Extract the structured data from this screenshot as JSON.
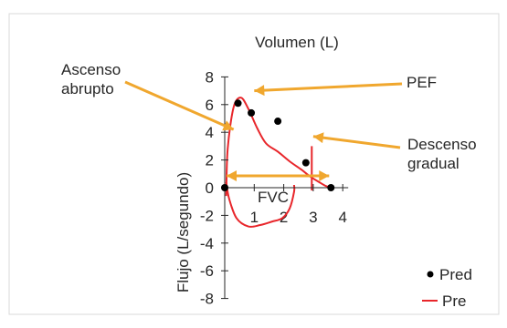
{
  "chart_data": {
    "type": "scatter",
    "title": "Volumen (L)",
    "xlabel": "Volumen (L)",
    "ylabel": "Flujo (L/segundo)",
    "xlim": [
      0,
      4
    ],
    "ylim": [
      -8,
      8
    ],
    "x_ticks": [
      1,
      2,
      3,
      4
    ],
    "y_ticks": [
      8,
      6,
      4,
      2,
      0,
      -2,
      -4,
      -6,
      -8
    ],
    "grid": false,
    "legend": "bottom-right",
    "series": [
      {
        "name": "Pred",
        "kind": "points",
        "color": "#000000",
        "x": [
          0,
          0.45,
          0.9,
          1.8,
          2.75,
          3.6
        ],
        "y": [
          0,
          6.1,
          5.4,
          4.8,
          1.8,
          0
        ]
      },
      {
        "name": "Pre",
        "kind": "line",
        "color": "#e8262b",
        "x": [
          0.05,
          0.1,
          0.3,
          0.55,
          0.8,
          1.1,
          1.4,
          1.8,
          2.2,
          2.6,
          2.9,
          3.2,
          3.45,
          3.65
        ],
        "y": [
          -0.6,
          2.8,
          5.8,
          6.5,
          5.7,
          4.3,
          3.2,
          2.6,
          1.9,
          1.3,
          0.8,
          0.4,
          0.1,
          0.0
        ],
        "return_x": [
          0.05,
          0.15,
          0.4,
          0.8,
          1.2,
          1.6,
          1.95,
          2.2,
          2.35,
          2.35
        ],
        "return_y": [
          0.4,
          -0.8,
          -2.2,
          -2.8,
          -2.7,
          -2.45,
          -2.2,
          -1.5,
          -0.3,
          0.2
        ],
        "vertical_mark": {
          "x": 2.95,
          "y1": -0.2,
          "y2": 3.0
        }
      }
    ],
    "annotations": [
      {
        "id": "pef",
        "text": "PEF",
        "points_to": [
          1.0,
          7.0
        ]
      },
      {
        "id": "ascenso",
        "lines": [
          "Ascenso",
          "abrupto"
        ],
        "points_to": [
          0.3,
          4.2
        ]
      },
      {
        "id": "descenso",
        "lines": [
          "Descenso",
          "gradual"
        ],
        "points_to": [
          3.0,
          3.7
        ]
      },
      {
        "id": "fvc",
        "text": "FVC",
        "span": [
          0,
          3.6
        ]
      }
    ],
    "arrow_color": "#f0a72e"
  }
}
